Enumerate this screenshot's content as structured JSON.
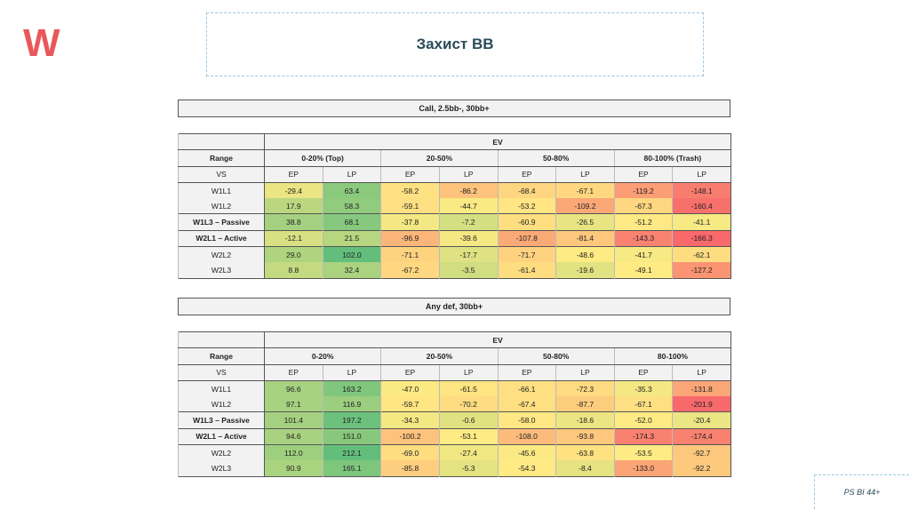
{
  "logo": "W",
  "title": "Захист ВВ",
  "footer": "PS BI 44+",
  "tables": [
    {
      "caption": "Call, 2.5bb-, 30bb+",
      "ev": "EV",
      "range_label": "Range",
      "vs_label": "VS",
      "ranges": [
        "0-20% (Top)",
        "20-50%",
        "50-80%",
        "80-100% (Trash)"
      ],
      "positions": [
        "EP",
        "LP",
        "EP",
        "LP",
        "EP",
        "LP",
        "EP",
        "LP"
      ],
      "rows": [
        {
          "label": "W1L1",
          "values": [
            "-29.4",
            "63.4",
            "-58.2",
            "-86.2",
            "-68.4",
            "-67.1",
            "-119.2",
            "-148.1"
          ]
        },
        {
          "label": "W1L2",
          "values": [
            "17.9",
            "58.3",
            "-59.1",
            "-44.7",
            "-53.2",
            "-109.2",
            "-67.3",
            "-160.4"
          ]
        },
        {
          "label": "W1L3 – Passive",
          "bold": true,
          "values": [
            "38.8",
            "68.1",
            "-37.8",
            "-7.2",
            "-60.9",
            "-26.5",
            "-51.2",
            "-41.1"
          ]
        },
        {
          "label": "W2L1 – Active",
          "bold": true,
          "values": [
            "-12.1",
            "21.5",
            "-96.9",
            "-39.6",
            "-107.8",
            "-81.4",
            "-143.3",
            "-166.3"
          ]
        },
        {
          "label": "W2L2",
          "values": [
            "29.0",
            "102.0",
            "-71.1",
            "-17.7",
            "-71.7",
            "-48.6",
            "-41.7",
            "-62.1"
          ]
        },
        {
          "label": "W2L3",
          "values": [
            "8.8",
            "32.4",
            "-67.2",
            "-3.5",
            "-61.4",
            "-19.6",
            "-49.1",
            "-127.2"
          ]
        }
      ]
    },
    {
      "caption": "Any def, 30bb+",
      "ev": "EV",
      "range_label": "Range",
      "vs_label": "VS",
      "ranges": [
        "0-20%",
        "20-50%",
        "50-80%",
        "80-100%"
      ],
      "positions": [
        "EP",
        "LP",
        "EP",
        "LP",
        "EP",
        "LP",
        "EP",
        "LP"
      ],
      "rows": [
        {
          "label": "W1L1",
          "values": [
            "96.6",
            "163.2",
            "-47.0",
            "-61.5",
            "-66.1",
            "-72.3",
            "-35.3",
            "-131.8"
          ]
        },
        {
          "label": "W1L2",
          "values": [
            "97.1",
            "116.9",
            "-59.7",
            "-70.2",
            "-67.4",
            "-87.7",
            "-67.1",
            "-201.9"
          ]
        },
        {
          "label": "W1L3 – Passive",
          "bold": true,
          "values": [
            "101.4",
            "197.2",
            "-34.3",
            "-0.6",
            "-58.0",
            "-18.6",
            "-52.0",
            "-20.4"
          ]
        },
        {
          "label": "W2L1 – Active",
          "bold": true,
          "values": [
            "94.6",
            "151.0",
            "-100.2",
            "-53.1",
            "-108.0",
            "-93.8",
            "-174.3",
            "-174.4"
          ]
        },
        {
          "label": "W2L2",
          "values": [
            "112.0",
            "212.1",
            "-69.0",
            "-27.4",
            "-45.6",
            "-63.8",
            "-53.5",
            "-92.7"
          ]
        },
        {
          "label": "W2L3",
          "values": [
            "90.9",
            "165.1",
            "-85.8",
            "-5.3",
            "-54.3",
            "-8.4",
            "-133.0",
            "-92.2"
          ]
        }
      ]
    }
  ]
}
